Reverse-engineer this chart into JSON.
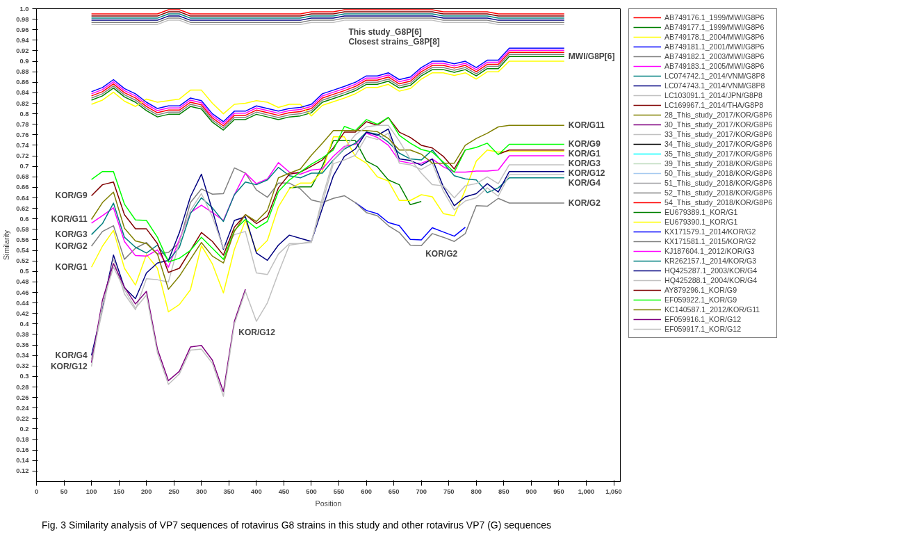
{
  "chart_data": {
    "type": "line",
    "xlabel": "Position",
    "ylabel": "Similarity",
    "xlim": [
      0,
      1062
    ],
    "ylim": [
      0.1,
      1.0
    ],
    "xticks": [
      0,
      50,
      100,
      150,
      200,
      250,
      300,
      350,
      400,
      450,
      500,
      550,
      600,
      650,
      700,
      750,
      800,
      850,
      900,
      950,
      {
        "value": 1000,
        "label": "1,000"
      },
      {
        "value": 1050,
        "label": "1,050"
      }
    ],
    "yticks": [
      0.12,
      0.14,
      0.16,
      0.18,
      0.2,
      0.22,
      0.24,
      0.26,
      0.28,
      0.3,
      0.32,
      0.34,
      0.36,
      0.38,
      0.4,
      0.42,
      0.44,
      0.46,
      0.48,
      0.5,
      0.52,
      0.54,
      0.56,
      0.58,
      0.6,
      0.62,
      0.64,
      0.66,
      0.68,
      0.7,
      0.72,
      0.74,
      0.76,
      0.78,
      0.8,
      0.82,
      0.84,
      0.86,
      0.88,
      0.9,
      0.92,
      0.94,
      0.96,
      0.98,
      {
        "value": 1.0,
        "label": "1.0"
      }
    ],
    "grid": false,
    "legend": "right",
    "line_style": "solid",
    "x": [
      100,
      120,
      140,
      160,
      180,
      200,
      220,
      240,
      260,
      280,
      300,
      320,
      340,
      360,
      380,
      400,
      420,
      440,
      460,
      480,
      500,
      520,
      540,
      560,
      580,
      600,
      620,
      640,
      660,
      680,
      700,
      720,
      740,
      760,
      780,
      800,
      820,
      840,
      860,
      880,
      900,
      920,
      940,
      960
    ],
    "series": [
      {
        "name": "AB749176.1_1999/MWI/G8P6",
        "color": "#ff0000",
        "values": [
          0.834,
          0.842,
          0.857,
          0.84,
          0.83,
          0.814,
          0.802,
          0.807,
          0.807,
          0.822,
          0.817,
          0.792,
          0.777,
          0.797,
          0.797,
          0.807,
          0.802,
          0.797,
          0.802,
          0.804,
          0.81,
          0.83,
          0.837,
          0.844,
          0.852,
          0.864,
          0.864,
          0.87,
          0.857,
          0.862,
          0.88,
          0.892,
          0.892,
          0.887,
          0.892,
          0.88,
          0.894,
          0.894,
          0.917,
          0.917,
          0.917,
          0.917,
          0.917,
          0.917
        ]
      },
      {
        "name": "AB749177.1_1999/MWI/G8P6",
        "color": "#008000",
        "values": [
          0.826,
          0.834,
          0.849,
          0.832,
          0.822,
          0.806,
          0.794,
          0.799,
          0.799,
          0.814,
          0.809,
          0.784,
          0.769,
          0.789,
          0.789,
          0.799,
          0.794,
          0.789,
          0.794,
          0.796,
          0.802,
          0.822,
          0.829,
          0.836,
          0.844,
          0.856,
          0.856,
          0.862,
          0.849,
          0.854,
          0.872,
          0.884,
          0.884,
          0.879,
          0.884,
          0.872,
          0.886,
          0.886,
          0.909,
          0.909,
          0.909,
          0.909,
          0.909,
          0.909
        ]
      },
      {
        "name": "AB749178.1_2004/MWI/G8P6",
        "color": "#ffff00",
        "values": [
          0.818,
          0.826,
          0.841,
          0.824,
          0.814,
          0.828,
          0.822,
          0.825,
          0.828,
          0.845,
          0.845,
          0.82,
          0.8,
          0.818,
          0.82,
          0.825,
          0.822,
          0.812,
          0.818,
          0.818,
          0.796,
          0.816,
          0.823,
          0.83,
          0.838,
          0.85,
          0.85,
          0.856,
          0.843,
          0.848,
          0.866,
          0.878,
          0.878,
          0.873,
          0.878,
          0.866,
          0.88,
          0.88,
          0.9,
          0.9,
          0.9,
          0.9,
          0.9,
          0.9
        ]
      },
      {
        "name": "AB749181.1_2001/MWI/G8P6",
        "color": "#0000ff",
        "values": [
          0.842,
          0.85,
          0.865,
          0.848,
          0.838,
          0.822,
          0.81,
          0.815,
          0.815,
          0.83,
          0.825,
          0.8,
          0.785,
          0.805,
          0.805,
          0.815,
          0.81,
          0.805,
          0.81,
          0.812,
          0.818,
          0.838,
          0.845,
          0.852,
          0.86,
          0.872,
          0.872,
          0.878,
          0.865,
          0.87,
          0.888,
          0.9,
          0.9,
          0.895,
          0.9,
          0.888,
          0.902,
          0.902,
          0.925,
          0.925,
          0.925,
          0.925,
          0.925,
          0.925
        ]
      },
      {
        "name": "AB749182.1_2003/MWI/G8P6",
        "color": "#808080",
        "values": [
          0.83,
          0.838,
          0.853,
          0.836,
          0.826,
          0.81,
          0.798,
          0.803,
          0.803,
          0.818,
          0.813,
          0.788,
          0.773,
          0.793,
          0.793,
          0.803,
          0.798,
          0.793,
          0.798,
          0.8,
          0.806,
          0.826,
          0.833,
          0.84,
          0.848,
          0.86,
          0.86,
          0.866,
          0.853,
          0.858,
          0.876,
          0.888,
          0.888,
          0.883,
          0.888,
          0.876,
          0.89,
          0.89,
          0.913,
          0.913,
          0.913,
          0.913,
          0.913,
          0.913
        ]
      },
      {
        "name": "AB749183.1_2005/MWI/G8P6",
        "color": "#ff00ff",
        "values": [
          0.838,
          0.846,
          0.861,
          0.844,
          0.834,
          0.818,
          0.806,
          0.811,
          0.811,
          0.826,
          0.821,
          0.796,
          0.781,
          0.801,
          0.801,
          0.811,
          0.806,
          0.801,
          0.806,
          0.808,
          0.814,
          0.834,
          0.841,
          0.848,
          0.856,
          0.868,
          0.868,
          0.874,
          0.861,
          0.866,
          0.884,
          0.896,
          0.896,
          0.891,
          0.896,
          0.884,
          0.898,
          0.898,
          0.921,
          0.921,
          0.921,
          0.921,
          0.921,
          0.921
        ]
      },
      {
        "name": "LC074742.1_2014/VNM/G8P8",
        "color": "#008080",
        "values": [
          0.982,
          0.982,
          0.982,
          0.982,
          0.982,
          0.982,
          0.982,
          0.99,
          0.99,
          0.982,
          0.982,
          0.982,
          0.982,
          0.982,
          0.982,
          0.982,
          0.982,
          0.982,
          0.982,
          0.982,
          0.986,
          0.986,
          0.986,
          0.99,
          0.99,
          0.99,
          0.99,
          0.99,
          0.99,
          0.99,
          0.99,
          0.99,
          0.986,
          0.986,
          0.986,
          0.986,
          0.986,
          0.982,
          0.982,
          0.982,
          0.982,
          0.982,
          0.982,
          0.982
        ]
      },
      {
        "name": "LC074743.1_2014/VNM/G8P8",
        "color": "#000080",
        "values": [
          0.978,
          0.978,
          0.978,
          0.978,
          0.978,
          0.978,
          0.978,
          0.986,
          0.986,
          0.978,
          0.978,
          0.978,
          0.978,
          0.978,
          0.978,
          0.978,
          0.978,
          0.978,
          0.978,
          0.978,
          0.982,
          0.982,
          0.982,
          0.986,
          0.986,
          0.986,
          0.986,
          0.986,
          0.986,
          0.986,
          0.986,
          0.986,
          0.982,
          0.982,
          0.982,
          0.982,
          0.982,
          0.978,
          0.978,
          0.978,
          0.978,
          0.978,
          0.978,
          0.978
        ]
      },
      {
        "name": "LC103091.1_2014/JPN/G8P8",
        "color": "#c0c0c0",
        "values": [
          0.97,
          0.97,
          0.97,
          0.97,
          0.97,
          0.97,
          0.97,
          0.978,
          0.978,
          0.97,
          0.97,
          0.97,
          0.97,
          0.97,
          0.97,
          0.97,
          0.97,
          0.97,
          0.97,
          0.97,
          0.974,
          0.974,
          0.974,
          0.978,
          0.978,
          0.978,
          0.978,
          0.978,
          0.978,
          0.978,
          0.978,
          0.978,
          0.974,
          0.974,
          0.974,
          0.974,
          0.974,
          0.97,
          0.97,
          0.97,
          0.97,
          0.97,
          0.97,
          0.97
        ]
      },
      {
        "name": "LC169967.1_2014/THA/G8P8",
        "color": "#800000",
        "values": [
          0.986,
          0.986,
          0.986,
          0.986,
          0.986,
          0.986,
          0.986,
          0.994,
          0.994,
          0.986,
          0.986,
          0.986,
          0.986,
          0.986,
          0.986,
          0.986,
          0.986,
          0.986,
          0.986,
          0.986,
          0.99,
          0.99,
          0.99,
          0.994,
          0.994,
          0.994,
          0.994,
          0.994,
          0.994,
          0.994,
          0.994,
          0.994,
          0.99,
          0.99,
          0.99,
          0.99,
          0.99,
          0.986,
          0.986,
          0.986,
          0.986,
          0.986,
          0.986,
          0.986
        ]
      },
      {
        "name": "28_This_study_2017/KOR/G8P6",
        "color": "#808000",
        "values": [
          null,
          null,
          null,
          null,
          null,
          null,
          null,
          null,
          null,
          null,
          null,
          null,
          null,
          null,
          null,
          null,
          null,
          null,
          null,
          null,
          null,
          null,
          null,
          null,
          null,
          null,
          null,
          null,
          null,
          null,
          null,
          null,
          null,
          null,
          null,
          null,
          null,
          null,
          null,
          null,
          null,
          null,
          null,
          null
        ]
      },
      {
        "name": "30_This_study_2017/KOR/G8P6",
        "color": "#800080",
        "values": [
          null,
          null,
          null,
          null,
          null,
          null,
          null,
          null,
          null,
          null,
          null,
          null,
          null,
          null,
          null,
          null,
          null,
          null,
          null,
          null,
          null,
          null,
          null,
          null,
          null,
          null,
          null,
          null,
          null,
          null,
          null,
          null,
          null,
          null,
          null,
          null,
          null,
          null,
          null,
          null,
          null,
          null,
          null,
          null
        ]
      },
      {
        "name": "33_This_study_2017/KOR/G8P6",
        "color": "#c0c0c0",
        "values": [
          null,
          null,
          null,
          null,
          null,
          null,
          null,
          null,
          null,
          null,
          null,
          null,
          null,
          null,
          null,
          null,
          null,
          null,
          null,
          null,
          null,
          null,
          null,
          null,
          null,
          null,
          null,
          null,
          null,
          null,
          null,
          null,
          null,
          null,
          null,
          null,
          null,
          null,
          null,
          null,
          null,
          null,
          null,
          null
        ]
      },
      {
        "name": "34_This_study_2017/KOR/G8P6",
        "color": "#000000",
        "values": [
          null,
          null,
          null,
          null,
          null,
          null,
          null,
          null,
          null,
          null,
          null,
          null,
          null,
          null,
          null,
          null,
          null,
          null,
          null,
          null,
          null,
          null,
          null,
          null,
          null,
          null,
          null,
          null,
          null,
          null,
          null,
          null,
          null,
          null,
          null,
          null,
          null,
          null,
          null,
          null,
          null,
          null,
          null,
          null
        ]
      },
      {
        "name": "35_This_study_2017/KOR/G8P6",
        "color": "#00ffff",
        "values": [
          null,
          null,
          null,
          null,
          null,
          null,
          null,
          null,
          null,
          null,
          null,
          null,
          null,
          null,
          null,
          null,
          null,
          null,
          null,
          null,
          null,
          null,
          null,
          null,
          null,
          null,
          null,
          null,
          null,
          null,
          null,
          null,
          null,
          null,
          null,
          null,
          null,
          null,
          null,
          null,
          null,
          null,
          null,
          null
        ]
      },
      {
        "name": "39_This_study_2018/KOR/G8P6",
        "color": "#c0dcc0",
        "values": [
          null,
          null,
          null,
          null,
          null,
          null,
          null,
          null,
          null,
          null,
          null,
          null,
          null,
          null,
          null,
          null,
          null,
          null,
          null,
          null,
          null,
          null,
          null,
          null,
          null,
          null,
          null,
          null,
          null,
          null,
          null,
          null,
          null,
          null,
          null,
          null,
          null,
          null,
          null,
          null,
          null,
          null,
          null,
          null
        ]
      },
      {
        "name": "50_This_study_2018/KOR/G8P6",
        "color": "#a6caf0",
        "values": [
          null,
          null,
          null,
          null,
          null,
          null,
          null,
          null,
          null,
          null,
          null,
          null,
          null,
          null,
          null,
          null,
          null,
          null,
          null,
          null,
          null,
          null,
          null,
          null,
          null,
          null,
          null,
          null,
          null,
          null,
          null,
          null,
          null,
          null,
          null,
          null,
          null,
          null,
          null,
          null,
          null,
          null,
          null,
          null
        ]
      },
      {
        "name": "51_This_study_2018/KOR/G8P6",
        "color": "#a0a0a4",
        "values": [
          null,
          null,
          null,
          null,
          null,
          null,
          null,
          null,
          null,
          null,
          null,
          null,
          null,
          null,
          null,
          null,
          null,
          null,
          null,
          null,
          null,
          null,
          null,
          null,
          null,
          null,
          null,
          null,
          null,
          null,
          null,
          null,
          null,
          null,
          null,
          null,
          null,
          null,
          null,
          null,
          null,
          null,
          null,
          null
        ]
      },
      {
        "name": "52_This_study_2018/KOR/G8P6",
        "color": "#808080",
        "values": [
          0.974,
          0.974,
          0.974,
          0.974,
          0.974,
          0.974,
          0.974,
          0.982,
          0.982,
          0.974,
          0.974,
          0.974,
          0.974,
          0.974,
          0.974,
          0.974,
          0.974,
          0.974,
          0.974,
          0.974,
          0.978,
          0.978,
          0.978,
          0.982,
          0.982,
          0.982,
          0.982,
          0.982,
          0.982,
          0.982,
          0.982,
          0.982,
          0.978,
          0.978,
          0.978,
          0.978,
          0.978,
          0.974,
          0.974,
          0.974,
          0.974,
          0.974,
          0.974,
          0.974
        ]
      },
      {
        "name": "54_This_study_2018/KOR/G8P6",
        "color": "#ff0000",
        "values": [
          0.99,
          0.99,
          0.99,
          0.99,
          0.99,
          0.99,
          0.99,
          0.998,
          0.998,
          0.99,
          0.99,
          0.99,
          0.99,
          0.99,
          0.99,
          0.99,
          0.99,
          0.99,
          0.99,
          0.99,
          0.994,
          0.994,
          0.994,
          0.998,
          0.998,
          0.998,
          0.998,
          0.998,
          0.998,
          0.998,
          0.998,
          0.998,
          0.994,
          0.994,
          0.994,
          0.994,
          0.994,
          0.99,
          0.99,
          0.99,
          0.99,
          0.99,
          0.99,
          0.99
        ]
      },
      {
        "name": "EU679389.1_KOR/G1",
        "color": "#008000",
        "values": [
          null,
          null,
          null,
          null,
          null,
          null,
          null,
          null,
          null,
          null,
          null,
          null,
          null,
          null,
          null,
          null,
          null,
          null,
          0.659,
          0.661,
          0.661,
          0.7,
          0.749,
          0.749,
          0.749,
          0.71,
          0.699,
          0.674,
          0.665,
          0.627,
          0.633,
          null,
          null,
          null,
          null,
          null,
          null,
          null,
          null,
          null,
          null,
          null,
          null,
          null
        ]
      },
      {
        "name": "EU679390.1_KOR/G1",
        "color": "#ffff00",
        "values": [
          0.508,
          0.548,
          0.578,
          0.506,
          0.474,
          0.532,
          0.506,
          0.423,
          0.437,
          0.465,
          0.549,
          0.514,
          0.459,
          0.542,
          0.597,
          0.538,
          0.559,
          0.623,
          0.657,
          0.668,
          0.668,
          0.691,
          0.756,
          0.756,
          0.719,
          0.706,
          0.68,
          0.672,
          0.635,
          0.635,
          0.646,
          0.642,
          0.61,
          0.606,
          0.655,
          0.71,
          0.731,
          0.727,
          0.729,
          0.729,
          0.729,
          0.729,
          0.729,
          0.729
        ]
      },
      {
        "name": "KX171579.1_2014/KOR/G2",
        "color": "#0000ff",
        "values": [
          null,
          null,
          null,
          null,
          null,
          null,
          null,
          null,
          null,
          null,
          null,
          null,
          null,
          null,
          null,
          null,
          null,
          null,
          null,
          null,
          null,
          null,
          null,
          null,
          0.631,
          0.616,
          0.61,
          0.593,
          0.587,
          0.561,
          0.56,
          0.583,
          0.575,
          0.567,
          0.584,
          null,
          null,
          null,
          null,
          null,
          null,
          null,
          null,
          null
        ]
      },
      {
        "name": "KX171581.1_2015/KOR/G2",
        "color": "#808080",
        "values": [
          0.548,
          0.576,
          0.587,
          0.523,
          0.544,
          0.555,
          0.533,
          0.536,
          0.555,
          0.631,
          0.657,
          0.647,
          0.648,
          0.697,
          0.687,
          0.655,
          0.641,
          0.668,
          0.668,
          0.657,
          0.636,
          0.631,
          0.639,
          0.644,
          0.631,
          0.612,
          0.606,
          0.587,
          0.574,
          0.55,
          0.549,
          0.572,
          0.565,
          0.557,
          0.572,
          0.625,
          0.624,
          0.639,
          0.63,
          0.63,
          0.63,
          0.63,
          0.63,
          0.63
        ]
      },
      {
        "name": "KJ187604.1_2012/KOR/G3",
        "color": "#ff00ff",
        "values": [
          0.592,
          0.606,
          0.621,
          0.557,
          0.53,
          0.529,
          0.541,
          0.508,
          0.561,
          0.612,
          0.626,
          0.612,
          0.597,
          0.646,
          0.687,
          0.667,
          0.676,
          0.707,
          0.689,
          0.685,
          0.693,
          0.695,
          0.719,
          0.738,
          0.742,
          0.763,
          0.755,
          0.74,
          0.71,
          0.706,
          0.706,
          0.714,
          0.699,
          0.689,
          0.689,
          0.691,
          0.691,
          0.693,
          0.72,
          0.72,
          0.72,
          0.72,
          0.72,
          0.72
        ]
      },
      {
        "name": "KR262157.1_2014/KOR/G3",
        "color": "#008080",
        "values": [
          0.57,
          0.591,
          0.63,
          0.565,
          0.546,
          0.535,
          0.55,
          0.521,
          0.546,
          0.61,
          0.64,
          0.621,
          0.595,
          0.646,
          0.67,
          0.665,
          0.674,
          0.698,
          0.682,
          0.678,
          0.687,
          0.687,
          0.712,
          0.733,
          0.744,
          0.765,
          0.761,
          0.746,
          0.725,
          0.714,
          0.712,
          0.731,
          0.706,
          0.682,
          0.676,
          0.674,
          0.65,
          0.659,
          0.678,
          0.678,
          0.678,
          0.678,
          0.678,
          0.678
        ]
      },
      {
        "name": "HQ425287.1_2003/KOR/G4",
        "color": "#000080",
        "values": [
          0.34,
          0.43,
          0.531,
          0.469,
          0.448,
          0.497,
          0.516,
          0.521,
          0.574,
          0.642,
          0.685,
          0.616,
          0.542,
          0.597,
          0.604,
          0.535,
          0.521,
          0.55,
          0.569,
          0.563,
          0.557,
          0.62,
          0.682,
          0.719,
          0.733,
          0.765,
          0.759,
          0.771,
          0.714,
          0.711,
          0.702,
          0.714,
          0.661,
          0.625,
          0.642,
          0.648,
          0.667,
          0.651,
          0.69,
          0.69,
          0.69,
          0.69,
          0.69,
          0.69
        ]
      },
      {
        "name": "HQ425288.1_2004/KOR/G4",
        "color": "#c0c0c0",
        "values": [
          0.333,
          0.425,
          0.524,
          0.457,
          0.427,
          0.486,
          0.484,
          0.48,
          0.557,
          0.616,
          0.648,
          0.604,
          0.544,
          0.57,
          0.576,
          0.497,
          0.494,
          0.533,
          0.553,
          0.553,
          0.557,
          0.63,
          0.705,
          0.712,
          0.721,
          0.757,
          0.751,
          0.763,
          0.706,
          0.703,
          0.694,
          0.706,
          0.653,
          0.617,
          0.634,
          0.64,
          0.659,
          0.643,
          0.684,
          0.684,
          0.684,
          0.684,
          0.684,
          0.684
        ]
      },
      {
        "name": "AY879296.1_KOR/G9",
        "color": "#800000",
        "values": [
          0.644,
          0.665,
          0.67,
          0.608,
          0.581,
          0.581,
          0.553,
          0.498,
          0.506,
          0.54,
          0.574,
          0.557,
          0.531,
          0.584,
          0.608,
          0.591,
          0.604,
          0.659,
          0.685,
          0.689,
          0.7,
          0.712,
          0.735,
          0.765,
          0.765,
          0.785,
          0.778,
          0.793,
          0.765,
          0.755,
          0.74,
          0.735,
          0.719,
          0.695,
          0.731,
          null,
          null,
          0.723,
          0.731,
          0.731,
          0.731,
          0.731,
          0.731,
          0.731
        ]
      },
      {
        "name": "EF059922.1_KOR/G9",
        "color": "#00ff00",
        "values": [
          0.675,
          0.69,
          0.69,
          0.628,
          0.598,
          0.597,
          0.565,
          0.518,
          0.525,
          0.54,
          0.565,
          0.544,
          0.523,
          0.578,
          0.599,
          0.582,
          0.595,
          0.652,
          0.674,
          0.689,
          0.704,
          0.716,
          0.731,
          0.776,
          0.768,
          0.789,
          0.78,
          0.793,
          0.759,
          0.744,
          0.732,
          0.727,
          0.708,
          0.689,
          0.731,
          0.736,
          0.744,
          0.722,
          0.742,
          0.742,
          0.742,
          0.742,
          0.742,
          0.742
        ]
      },
      {
        "name": "KC140587.1_2012/KOR/G11",
        "color": "#808000",
        "values": [
          0.599,
          0.631,
          0.651,
          0.582,
          0.558,
          0.553,
          0.533,
          0.466,
          0.491,
          0.523,
          0.555,
          0.529,
          0.516,
          0.576,
          0.608,
          0.595,
          0.616,
          0.678,
          0.687,
          0.695,
          0.721,
          0.744,
          0.768,
          0.768,
          0.768,
          0.768,
          0.766,
          0.753,
          0.731,
          0.731,
          0.723,
          0.706,
          0.706,
          0.706,
          0.74,
          0.753,
          0.763,
          0.775,
          0.778,
          0.778,
          0.778,
          0.778,
          0.778,
          0.778
        ]
      },
      {
        "name": "EF059916.1_KOR/G12",
        "color": "#800080",
        "values": [
          0.326,
          0.445,
          0.515,
          0.47,
          0.438,
          0.462,
          0.352,
          0.292,
          0.31,
          0.356,
          0.359,
          0.331,
          0.271,
          0.405,
          0.466,
          null,
          null,
          null,
          null,
          null,
          null,
          null,
          null,
          null,
          null,
          null,
          null,
          null,
          null,
          null,
          null,
          null,
          null,
          null,
          null,
          null,
          null,
          null,
          null,
          null,
          null,
          null,
          null,
          null
        ]
      },
      {
        "name": "EF059917.1_KOR/G12",
        "color": "#c0c0c0",
        "values": [
          0.319,
          0.438,
          0.508,
          0.465,
          0.43,
          0.455,
          0.345,
          0.285,
          0.305,
          0.35,
          0.352,
          0.325,
          0.262,
          0.4,
          0.462,
          0.405,
          0.44,
          0.497,
          0.55,
          0.553,
          0.555,
          0.64,
          0.712,
          0.735,
          0.76,
          0.775,
          0.778,
          0.778,
          0.748,
          0.714,
          0.687,
          0.665,
          0.663,
          0.64,
          0.663,
          0.667,
          0.68,
          0.667,
          0.703,
          0.703,
          0.703,
          0.703,
          0.703,
          0.703
        ]
      }
    ],
    "annotations": [
      {
        "text": "This study_G8P[6]",
        "x": 560,
        "y": 0.972
      },
      {
        "text": "Closest strains_G8P[8]",
        "x": 560,
        "y": 0.972
      },
      {
        "text": "MWI/G8P[6]",
        "x": 960,
        "y": 0.909
      },
      {
        "text": "KOR/G11",
        "x": 960,
        "y": 0.778
      },
      {
        "text": "KOR/G9",
        "x": 960,
        "y": 0.742
      },
      {
        "text": "KOR/G1",
        "x": 960,
        "y": 0.729
      },
      {
        "text": "KOR/G3",
        "x": 960,
        "y": 0.72
      },
      {
        "text": "KOR/G12",
        "x": 960,
        "y": 0.703
      },
      {
        "text": "KOR/G4",
        "x": 960,
        "y": 0.69
      },
      {
        "text": "KOR/G2",
        "x": 960,
        "y": 0.63
      },
      {
        "text": "KOR/G9",
        "x": 100,
        "y": 0.644
      },
      {
        "text": "KOR/G11",
        "x": 100,
        "y": 0.599
      },
      {
        "text": "KOR/G3",
        "x": 100,
        "y": 0.57
      },
      {
        "text": "KOR/G2",
        "x": 100,
        "y": 0.548
      },
      {
        "text": "KOR/G12",
        "x": 100,
        "y": 0.319
      },
      {
        "text": "KOR/G1",
        "x": 100,
        "y": 0.508
      },
      {
        "text": "KOR/G4",
        "x": 100,
        "y": 0.34
      },
      {
        "text": "KOR/G12",
        "x": 360,
        "y": 0.4
      },
      {
        "text": "KOR/G2",
        "x": 700,
        "y": 0.549
      },
      "Fig. 3  Similarity analysis of VP7 sequences of rotavirus G8 strains in this study and other rotavirus VP7 (G) sequences"
    ]
  }
}
